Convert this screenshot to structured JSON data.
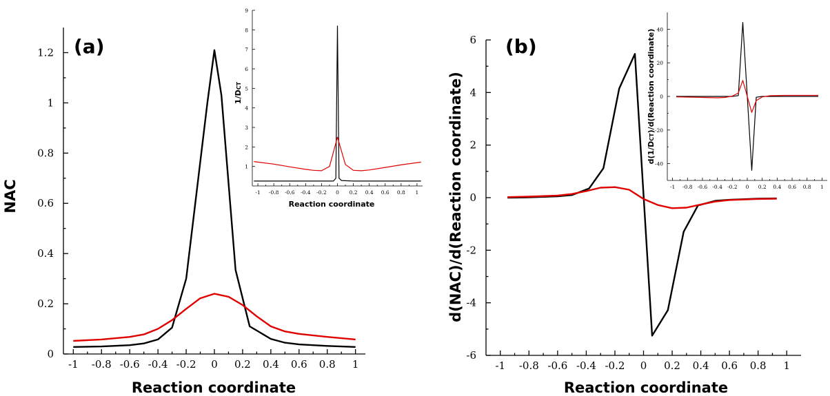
{
  "colors": {
    "series_black": "#000000",
    "series_red": "#e00000",
    "axis": "#000000"
  },
  "chart_data": [
    {
      "id": "a_main",
      "type": "line",
      "panel_label": "(a)",
      "xlabel": "Reaction coordinate",
      "ylabel": "NAC",
      "xlim": [
        -1.07,
        1.07
      ],
      "ylim": [
        0,
        1.3
      ],
      "xticks": [
        -1,
        -0.8,
        -0.6,
        -0.4,
        -0.2,
        0,
        0.2,
        0.4,
        0.6,
        0.8,
        1
      ],
      "xtick_labels": [
        "-1",
        "-0.8",
        "-0.6",
        "-0.4",
        "-0.2",
        "0",
        "0.2",
        "0.4",
        "0.6",
        "0.8",
        "1"
      ],
      "yticks": [
        0,
        0.2,
        0.4,
        0.6,
        0.8,
        1,
        1.2
      ],
      "ytick_labels": [
        "0",
        "0.2",
        "0.4",
        "0.6",
        "0.8",
        "1",
        "1.2"
      ],
      "grid": false,
      "series": [
        {
          "color": "#000000",
          "x": [
            -1,
            -0.8,
            -0.6,
            -0.5,
            -0.4,
            -0.3,
            -0.2,
            -0.05,
            0,
            0.05,
            0.15,
            0.25,
            0.4,
            0.5,
            0.6,
            0.8,
            1
          ],
          "y": [
            0.028,
            0.03,
            0.035,
            0.042,
            0.058,
            0.105,
            0.3,
            1.0,
            1.21,
            1.03,
            0.335,
            0.11,
            0.06,
            0.045,
            0.038,
            0.032,
            0.028
          ]
        },
        {
          "color": "#e00000",
          "x": [
            -1,
            -0.8,
            -0.6,
            -0.5,
            -0.4,
            -0.3,
            -0.2,
            -0.1,
            0,
            0.1,
            0.2,
            0.3,
            0.4,
            0.5,
            0.6,
            0.8,
            1
          ],
          "y": [
            0.052,
            0.058,
            0.068,
            0.078,
            0.1,
            0.135,
            0.18,
            0.222,
            0.24,
            0.228,
            0.195,
            0.15,
            0.11,
            0.09,
            0.08,
            0.068,
            0.058
          ]
        }
      ]
    },
    {
      "id": "a_inset",
      "type": "line",
      "xlabel": "Reaction coordinate",
      "ylabel": "1/D",
      "ylabel_sub": "CT",
      "xlim": [
        -1.07,
        1.07
      ],
      "ylim": [
        0,
        9
      ],
      "xticks": [
        -1,
        -0.8,
        -0.6,
        -0.4,
        -0.2,
        0,
        0.2,
        0.4,
        0.6,
        0.8,
        1
      ],
      "xtick_labels": [
        "-1",
        "-0.8",
        "-0.6",
        "-0.4",
        "-0.2",
        "0",
        "0.2",
        "0.4",
        "0.6",
        "0.8",
        "1"
      ],
      "yticks": [
        1,
        2,
        3,
        4,
        5,
        6,
        7,
        8,
        9
      ],
      "ytick_labels": [
        "1",
        "2",
        "3",
        "4",
        "5",
        "6",
        "7",
        "8",
        "9"
      ],
      "series": [
        {
          "color": "#000000",
          "x": [
            -1.05,
            -0.2,
            -0.05,
            -0.02,
            0,
            0.02,
            0.05,
            0.2,
            1.05
          ],
          "y": [
            0.25,
            0.25,
            0.25,
            0.4,
            8.2,
            0.4,
            0.28,
            0.25,
            0.25
          ]
        },
        {
          "color": "#e00000",
          "x": [
            -1.05,
            -0.8,
            -0.6,
            -0.4,
            -0.3,
            -0.2,
            -0.1,
            0,
            0.1,
            0.2,
            0.3,
            0.4,
            0.6,
            0.8,
            1.05
          ],
          "y": [
            1.25,
            1.12,
            0.98,
            0.85,
            0.8,
            0.78,
            1.0,
            2.5,
            1.1,
            0.8,
            0.78,
            0.82,
            0.95,
            1.08,
            1.22
          ]
        }
      ]
    },
    {
      "id": "b_main",
      "type": "line",
      "panel_label": "(b)",
      "xlabel": "Reaction coordinate",
      "ylabel": "d(NAC)/d(Reaction coordinate)",
      "xlim": [
        -1.1,
        1.1
      ],
      "ylim": [
        -6,
        6
      ],
      "xticks": [
        -1,
        -0.8,
        -0.6,
        -0.4,
        -0.2,
        0,
        0.2,
        0.4,
        0.6,
        0.8,
        1
      ],
      "xtick_labels": [
        "-1",
        "-0.8",
        "-0.6",
        "-0.4",
        "-0.2",
        "0",
        "0.2",
        "0.4",
        "0.6",
        "0.8",
        "1"
      ],
      "yticks": [
        -6,
        -4,
        -2,
        0,
        2,
        4,
        6
      ],
      "ytick_labels": [
        "-6",
        "-4",
        "-2",
        "0",
        "2",
        "4",
        "6"
      ],
      "series": [
        {
          "color": "#000000",
          "x": [
            -0.95,
            -0.8,
            -0.6,
            -0.5,
            -0.38,
            -0.28,
            -0.17,
            -0.06,
            0.06,
            0.17,
            0.28,
            0.38,
            0.5,
            0.6,
            0.8,
            0.93
          ],
          "y": [
            0.0,
            0.01,
            0.05,
            0.1,
            0.35,
            1.12,
            4.15,
            5.47,
            -5.25,
            -4.28,
            -1.3,
            -0.3,
            -0.12,
            -0.08,
            -0.04,
            -0.03
          ]
        },
        {
          "color": "#e00000",
          "x": [
            -0.95,
            -0.8,
            -0.6,
            -0.5,
            -0.4,
            -0.3,
            -0.2,
            -0.1,
            0,
            0.1,
            0.2,
            0.3,
            0.4,
            0.5,
            0.6,
            0.8,
            0.93
          ],
          "y": [
            0.02,
            0.04,
            0.08,
            0.14,
            0.25,
            0.38,
            0.4,
            0.3,
            -0.05,
            -0.28,
            -0.4,
            -0.38,
            -0.26,
            -0.15,
            -0.09,
            -0.05,
            -0.04
          ]
        }
      ]
    },
    {
      "id": "b_inset",
      "type": "line",
      "ylabel_pre": "d(1/D",
      "ylabel_sub": "CT",
      "ylabel_post": ")/d(Reaction coordinate)",
      "xlim": [
        -1.07,
        1.07
      ],
      "ylim": [
        -50,
        50
      ],
      "xticks": [
        -1,
        -0.8,
        -0.6,
        -0.4,
        -0.2,
        0,
        0.2,
        0.4,
        0.6,
        0.8,
        1
      ],
      "xtick_labels": [
        "-1",
        "-0.8",
        "-0.6",
        "-0.4",
        "-0.2",
        "0",
        "0.2",
        "0.4",
        "0.6",
        "0.8",
        "1"
      ],
      "yticks": [
        -40,
        -20,
        0,
        20,
        40
      ],
      "ytick_labels": [
        "-40",
        "-20",
        "0",
        "20",
        "40"
      ],
      "series": [
        {
          "color": "#000000",
          "x": [
            -0.95,
            -0.2,
            -0.12,
            -0.06,
            0.06,
            0.12,
            0.2,
            0.95
          ],
          "y": [
            0,
            0,
            0.5,
            44,
            -44,
            -0.5,
            0,
            0
          ]
        },
        {
          "color": "#e00000",
          "x": [
            -0.95,
            -0.6,
            -0.4,
            -0.3,
            -0.2,
            -0.12,
            -0.06,
            0.06,
            0.12,
            0.2,
            0.3,
            0.5,
            0.95
          ],
          "y": [
            -0.3,
            -0.6,
            -0.8,
            -0.6,
            0.2,
            2,
            9.5,
            -9.5,
            -2.5,
            -0.3,
            0.4,
            0.6,
            0.6
          ]
        }
      ]
    }
  ]
}
